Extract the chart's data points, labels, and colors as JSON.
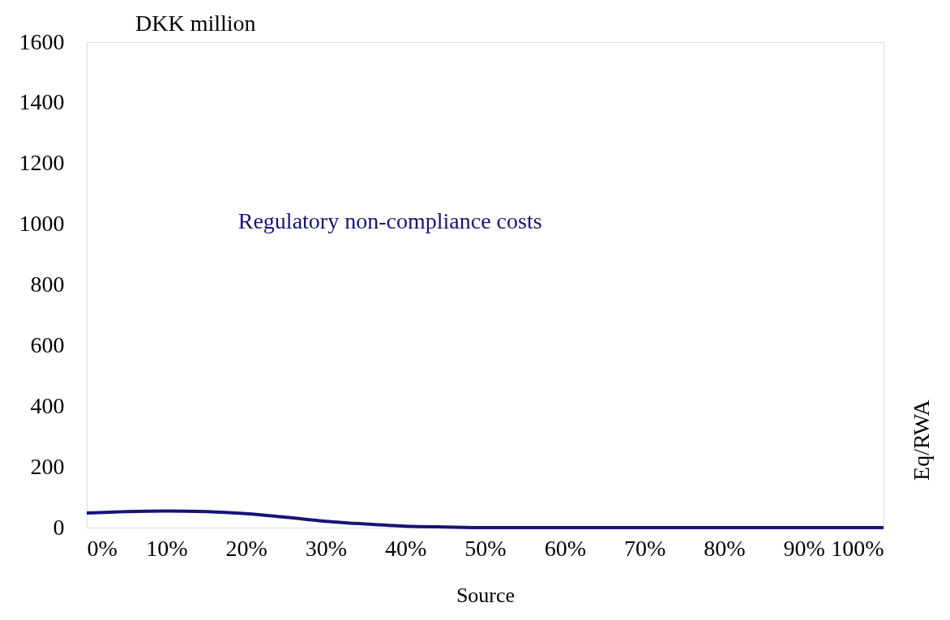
{
  "chart_data": {
    "type": "line",
    "ylabel": "DKK million",
    "xlabel": "Source",
    "y2label": "Eq/RWA",
    "x": [
      0,
      5,
      10,
      15,
      20,
      25,
      30,
      35,
      40,
      45,
      50,
      60,
      70,
      80,
      90,
      100
    ],
    "series": [
      {
        "name": "Regulatory non-compliance costs",
        "color": "#141478",
        "values": [
          48,
          53,
          55,
          53,
          46,
          34,
          21,
          12,
          5,
          2,
          0,
          0,
          0,
          0,
          0,
          0
        ]
      }
    ],
    "xlim": [
      0,
      100
    ],
    "ylim": [
      0,
      1600
    ],
    "xticks": [
      {
        "value": 0,
        "label": "0%"
      },
      {
        "value": 10,
        "label": "10%"
      },
      {
        "value": 20,
        "label": "20%"
      },
      {
        "value": 30,
        "label": "30%"
      },
      {
        "value": 40,
        "label": "40%"
      },
      {
        "value": 50,
        "label": "50%"
      },
      {
        "value": 60,
        "label": "60%"
      },
      {
        "value": 70,
        "label": "70%"
      },
      {
        "value": 80,
        "label": "80%"
      },
      {
        "value": 90,
        "label": "90%"
      },
      {
        "value": 100,
        "label": "100%"
      }
    ],
    "yticks": [
      0,
      200,
      400,
      600,
      800,
      1000,
      1200,
      1400,
      1600
    ],
    "grid": false,
    "legend": false,
    "marker": "none",
    "line_style": "solid"
  }
}
